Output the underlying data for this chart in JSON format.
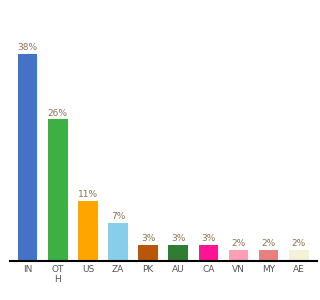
{
  "categories": [
    "IN",
    "OT\nH",
    "US",
    "ZA",
    "PK",
    "AU",
    "CA",
    "VN",
    "MY",
    "AE"
  ],
  "values": [
    38,
    26,
    11,
    7,
    3,
    3,
    3,
    2,
    2,
    2
  ],
  "bar_colors": [
    "#4472c4",
    "#3cb043",
    "#ffa500",
    "#87ceeb",
    "#b8560a",
    "#2e7d32",
    "#ff1493",
    "#ff9eb5",
    "#e88080",
    "#f5f0d8"
  ],
  "labels": [
    "38%",
    "26%",
    "11%",
    "7%",
    "3%",
    "3%",
    "3%",
    "2%",
    "2%",
    "2%"
  ],
  "ylim": [
    0,
    44
  ],
  "label_color": "#8B7355",
  "label_fontsize": 6.5,
  "xtick_fontsize": 6.5,
  "bar_width": 0.65
}
